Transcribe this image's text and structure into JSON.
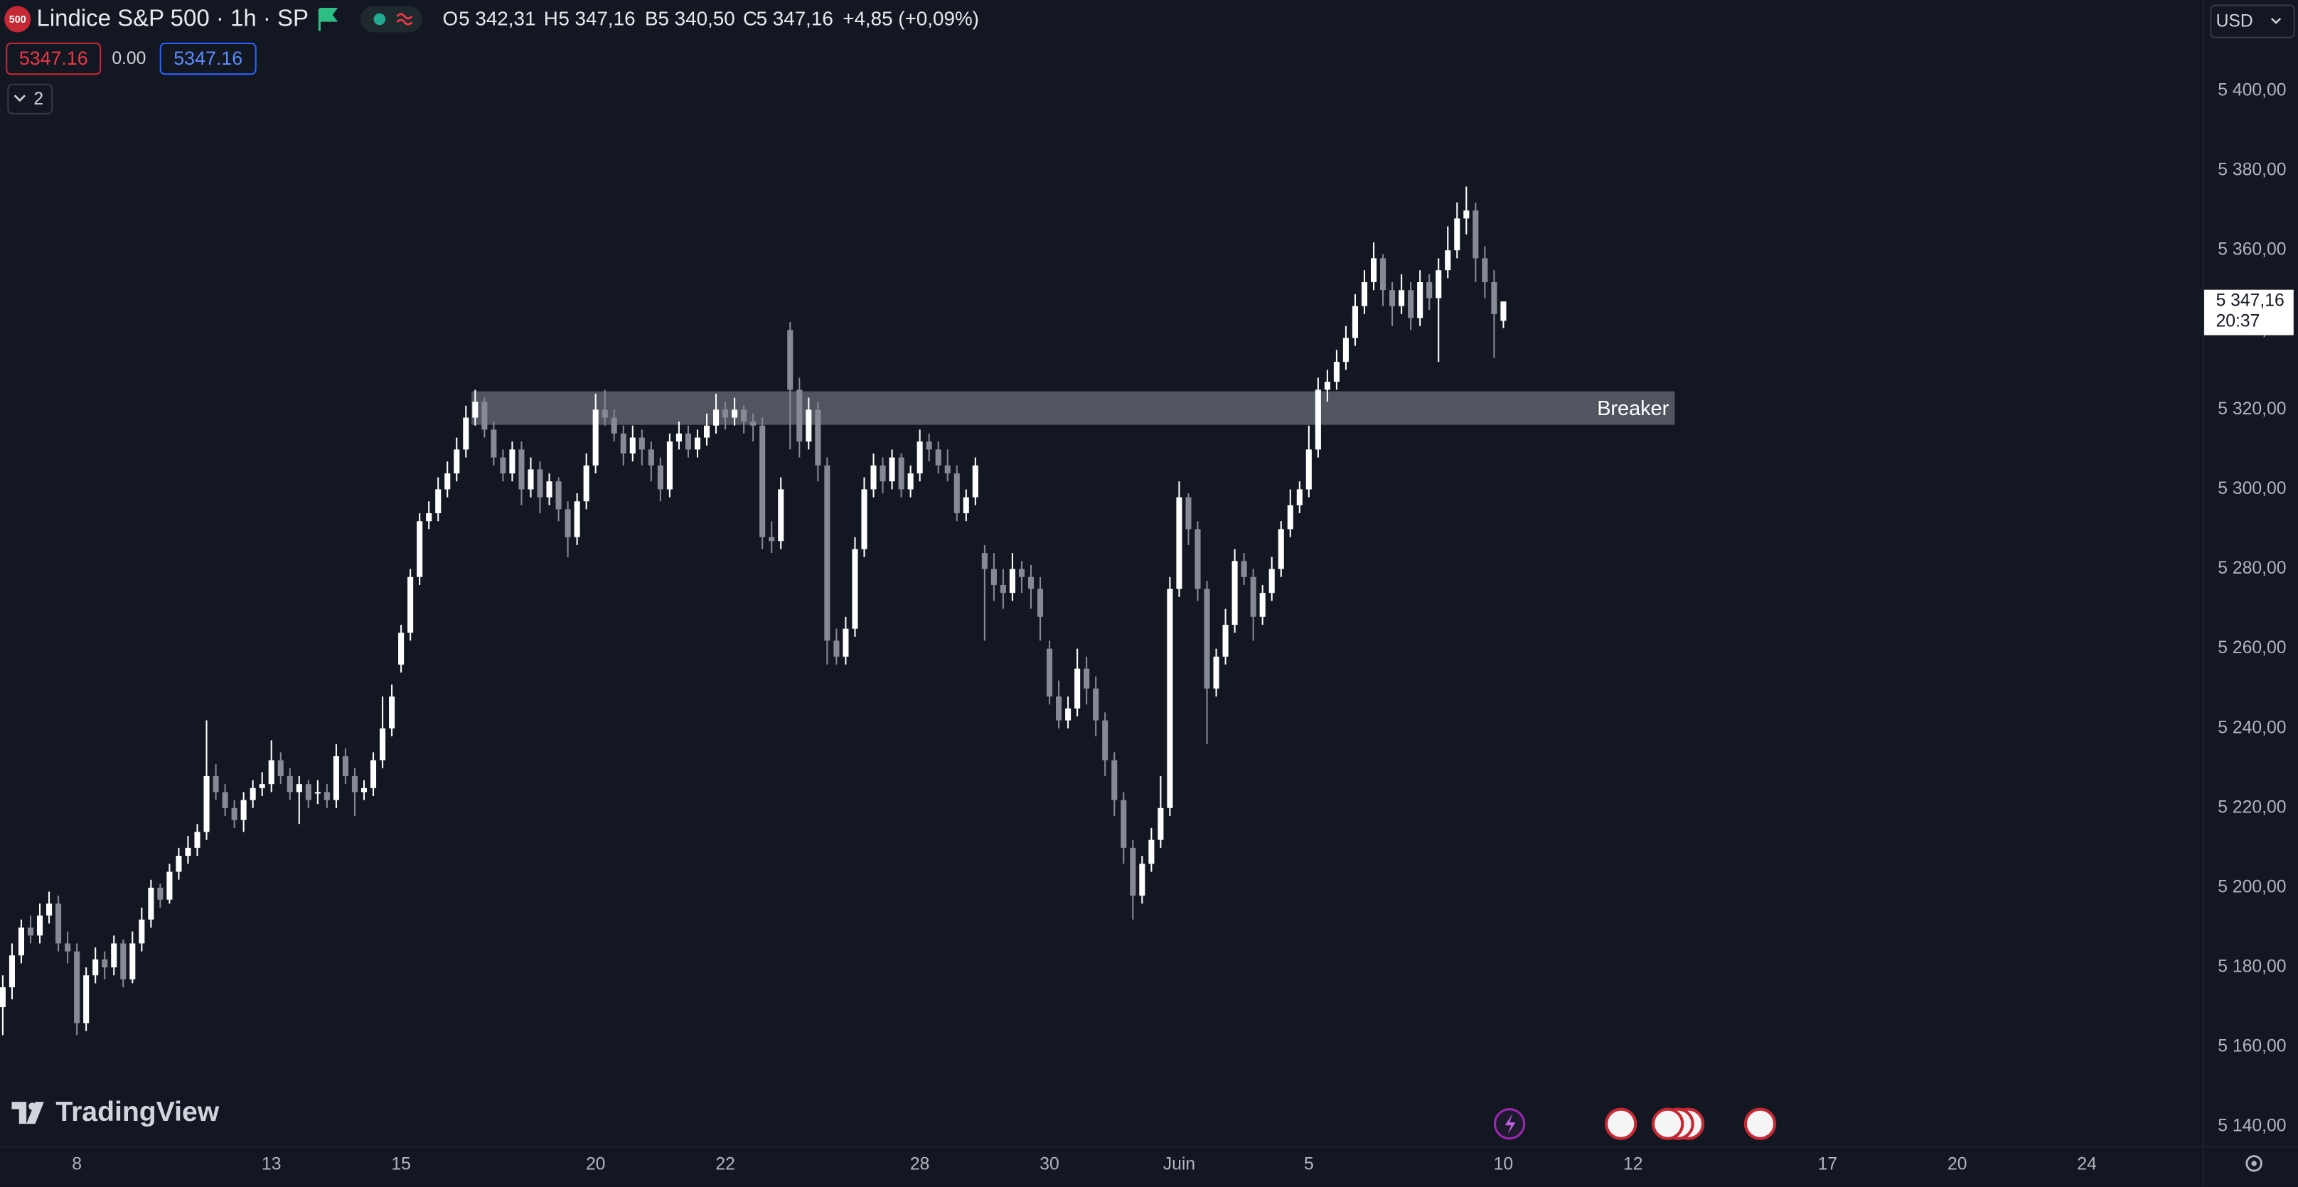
{
  "ui": {
    "symbol_icon": "500",
    "title": "Lindice S&P 500 · 1h · SP",
    "open_label": "O",
    "open": "5 342,31",
    "high_label": "H",
    "high": "5 347,16",
    "low_label": "B",
    "low": "5 340,50",
    "close_label": "C",
    "close": "5 347,16",
    "change": "+4,85 (+0,09%)",
    "sell_price": "5347.16",
    "spread": "0.00",
    "buy_price": "5347.16",
    "indicators_count": "2",
    "currency": "USD",
    "logo": "TradingView"
  },
  "chart_data": {
    "type": "candlestick",
    "up_color": "#ffffff",
    "down_color": "#878a94",
    "xlim": [
      -0.3,
      237.5
    ],
    "ylim": [
      5135.2,
      5422.8
    ],
    "grid": false,
    "xticks": [
      {
        "value": 8,
        "label": "8"
      },
      {
        "value": 29,
        "label": "13"
      },
      {
        "value": 43,
        "label": "15"
      },
      {
        "value": 64,
        "label": "20"
      },
      {
        "value": 78,
        "label": "22"
      },
      {
        "value": 99,
        "label": "28"
      },
      {
        "value": 113,
        "label": "30"
      },
      {
        "value": 127,
        "label": "Juin"
      },
      {
        "value": 141,
        "label": "5"
      },
      {
        "value": 162,
        "label": "10"
      },
      {
        "value": 176,
        "label": "12"
      },
      {
        "value": 197,
        "label": "17"
      },
      {
        "value": 211,
        "label": "20"
      },
      {
        "value": 225,
        "label": "24"
      }
    ],
    "yticks": [
      {
        "value": 5140,
        "label": "5 140,00"
      },
      {
        "value": 5160,
        "label": "5 160,00"
      },
      {
        "value": 5180,
        "label": "5 180,00"
      },
      {
        "value": 5200,
        "label": "5 200,00"
      },
      {
        "value": 5220,
        "label": "5 220,00"
      },
      {
        "value": 5240,
        "label": "5 240,00"
      },
      {
        "value": 5260,
        "label": "5 260,00"
      },
      {
        "value": 5280,
        "label": "5 280,00"
      },
      {
        "value": 5300,
        "label": "5 300,00"
      },
      {
        "value": 5320,
        "label": "5 320,00"
      },
      {
        "value": 5340,
        "label": "5 340,00"
      },
      {
        "value": 5360,
        "label": "5 360,00"
      },
      {
        "value": 5380,
        "label": "5 380,00"
      },
      {
        "value": 5400,
        "label": "5 400,00"
      }
    ],
    "zones": [
      {
        "label": "Breaker",
        "color": "#5d606b",
        "x": [
          50.6,
          180.5
        ],
        "y": [
          5316.2,
          5324.6
        ]
      }
    ],
    "last_price_label": "5 347,16",
    "countdown": "20:37",
    "ohlc": [
      [
        5170,
        5178,
        5163,
        5175
      ],
      [
        5175,
        5186,
        5172,
        5183
      ],
      [
        5183,
        5192,
        5181,
        5190
      ],
      [
        5190,
        5193,
        5186,
        5188
      ],
      [
        5188,
        5196,
        5186,
        5193
      ],
      [
        5193,
        5199,
        5191,
        5196
      ],
      [
        5196,
        5198,
        5184,
        5186
      ],
      [
        5186,
        5189,
        5181,
        5184
      ],
      [
        5184,
        5186,
        5163,
        5166
      ],
      [
        5166,
        5180,
        5164,
        5178
      ],
      [
        5178,
        5185,
        5176,
        5182
      ],
      [
        5182,
        5184,
        5177,
        5180
      ],
      [
        5180,
        5188,
        5178,
        5186
      ],
      [
        5186,
        5187,
        5175,
        5177
      ],
      [
        5177,
        5189,
        5176,
        5186
      ],
      [
        5186,
        5195,
        5184,
        5192
      ],
      [
        5192,
        5202,
        5190,
        5200
      ],
      [
        5200,
        5201,
        5195,
        5197
      ],
      [
        5197,
        5206,
        5196,
        5204
      ],
      [
        5204,
        5210,
        5202,
        5208
      ],
      [
        5208,
        5213,
        5206,
        5210
      ],
      [
        5210,
        5216,
        5208,
        5214
      ],
      [
        5214,
        5242,
        5212,
        5228
      ],
      [
        5228,
        5231,
        5222,
        5224
      ],
      [
        5224,
        5226,
        5218,
        5220
      ],
      [
        5220,
        5222,
        5215,
        5217
      ],
      [
        5217,
        5224,
        5214,
        5222
      ],
      [
        5222,
        5227,
        5220,
        5225
      ],
      [
        5225,
        5229,
        5223,
        5226
      ],
      [
        5226,
        5237,
        5224,
        5232
      ],
      [
        5232,
        5234,
        5226,
        5228
      ],
      [
        5228,
        5230,
        5222,
        5224
      ],
      [
        5224,
        5228,
        5216,
        5226
      ],
      [
        5226,
        5227,
        5220,
        5222
      ],
      [
        5224,
        5227,
        5221,
        5224
      ],
      [
        5224,
        5226,
        5220,
        5222
      ],
      [
        5222,
        5236,
        5220,
        5233
      ],
      [
        5233,
        5235,
        5226,
        5228
      ],
      [
        5228,
        5230,
        5218,
        5224
      ],
      [
        5224,
        5227,
        5222,
        5225
      ],
      [
        5225,
        5234,
        5223,
        5232
      ],
      [
        5232,
        5248,
        5230,
        5240
      ],
      [
        5240,
        5251,
        5238,
        5248
      ],
      [
        5256,
        5266,
        5254,
        5264
      ],
      [
        5264,
        5280,
        5262,
        5278
      ],
      [
        5278,
        5294,
        5276,
        5292
      ],
      [
        5292,
        5297,
        5290,
        5294
      ],
      [
        5294,
        5303,
        5292,
        5300
      ],
      [
        5300,
        5307,
        5298,
        5304
      ],
      [
        5304,
        5313,
        5302,
        5310
      ],
      [
        5310,
        5321,
        5308,
        5318
      ],
      [
        5318,
        5325,
        5316,
        5322
      ],
      [
        5322,
        5323,
        5313,
        5315
      ],
      [
        5315,
        5317,
        5306,
        5308
      ],
      [
        5308,
        5310,
        5302,
        5304
      ],
      [
        5304,
        5312,
        5302,
        5310
      ],
      [
        5310,
        5312,
        5296,
        5300
      ],
      [
        5300,
        5308,
        5298,
        5305
      ],
      [
        5305,
        5307,
        5294,
        5298
      ],
      [
        5298,
        5304,
        5296,
        5302
      ],
      [
        5302,
        5303,
        5292,
        5295
      ],
      [
        5295,
        5297,
        5283,
        5288
      ],
      [
        5288,
        5299,
        5286,
        5297
      ],
      [
        5297,
        5309,
        5295,
        5306
      ],
      [
        5306,
        5324,
        5304,
        5320
      ],
      [
        5320,
        5325,
        5316,
        5318
      ],
      [
        5318,
        5320,
        5312,
        5314
      ],
      [
        5314,
        5316,
        5306,
        5309
      ],
      [
        5309,
        5316,
        5307,
        5313
      ],
      [
        5313,
        5315,
        5306,
        5310
      ],
      [
        5310,
        5312,
        5302,
        5306
      ],
      [
        5306,
        5308,
        5297,
        5300
      ],
      [
        5300,
        5314,
        5298,
        5312
      ],
      [
        5312,
        5317,
        5310,
        5314
      ],
      [
        5314,
        5316,
        5308,
        5310
      ],
      [
        5310,
        5315,
        5308,
        5313
      ],
      [
        5313,
        5319,
        5311,
        5316
      ],
      [
        5316,
        5324,
        5314,
        5320
      ],
      [
        5320,
        5322,
        5315,
        5318
      ],
      [
        5318,
        5323,
        5316,
        5320
      ],
      [
        5320,
        5321,
        5314,
        5317
      ],
      [
        5317,
        5319,
        5312,
        5316
      ],
      [
        5316,
        5318,
        5285,
        5288
      ],
      [
        5288,
        5292,
        5284,
        5287
      ],
      [
        5287,
        5303,
        5285,
        5300
      ],
      [
        5340,
        5342,
        5310,
        5325
      ],
      [
        5325,
        5328,
        5308,
        5312
      ],
      [
        5312,
        5323,
        5310,
        5320
      ],
      [
        5320,
        5322,
        5302,
        5306
      ],
      [
        5306,
        5308,
        5256,
        5262
      ],
      [
        5262,
        5265,
        5256,
        5258
      ],
      [
        5258,
        5268,
        5256,
        5265
      ],
      [
        5265,
        5288,
        5263,
        5285
      ],
      [
        5285,
        5303,
        5283,
        5300
      ],
      [
        5300,
        5309,
        5298,
        5306
      ],
      [
        5306,
        5308,
        5299,
        5302
      ],
      [
        5302,
        5310,
        5300,
        5308
      ],
      [
        5308,
        5309,
        5298,
        5300
      ],
      [
        5300,
        5306,
        5298,
        5304
      ],
      [
        5304,
        5315,
        5302,
        5312
      ],
      [
        5312,
        5314,
        5307,
        5310
      ],
      [
        5310,
        5312,
        5304,
        5306
      ],
      [
        5306,
        5310,
        5302,
        5304
      ],
      [
        5304,
        5306,
        5292,
        5294
      ],
      [
        5294,
        5300,
        5292,
        5298
      ],
      [
        5298,
        5308,
        5296,
        5306
      ],
      [
        5284,
        5286,
        5262,
        5280
      ],
      [
        5280,
        5284,
        5272,
        5276
      ],
      [
        5276,
        5280,
        5270,
        5274
      ],
      [
        5274,
        5284,
        5272,
        5280
      ],
      [
        5280,
        5282,
        5274,
        5278
      ],
      [
        5278,
        5281,
        5270,
        5275
      ],
      [
        5275,
        5278,
        5262,
        5268
      ],
      [
        5260,
        5262,
        5246,
        5248
      ],
      [
        5248,
        5252,
        5240,
        5242
      ],
      [
        5242,
        5248,
        5240,
        5245
      ],
      [
        5245,
        5260,
        5243,
        5255
      ],
      [
        5255,
        5258,
        5246,
        5250
      ],
      [
        5250,
        5253,
        5238,
        5242
      ],
      [
        5242,
        5244,
        5228,
        5232
      ],
      [
        5232,
        5234,
        5218,
        5222
      ],
      [
        5222,
        5224,
        5206,
        5210
      ],
      [
        5210,
        5212,
        5192,
        5198
      ],
      [
        5198,
        5208,
        5196,
        5206
      ],
      [
        5206,
        5215,
        5204,
        5212
      ],
      [
        5212,
        5228,
        5210,
        5220
      ],
      [
        5220,
        5278,
        5218,
        5275
      ],
      [
        5275,
        5302,
        5273,
        5298
      ],
      [
        5298,
        5299,
        5286,
        5290
      ],
      [
        5290,
        5292,
        5272,
        5275
      ],
      [
        5275,
        5277,
        5236,
        5250
      ],
      [
        5250,
        5260,
        5248,
        5258
      ],
      [
        5258,
        5270,
        5256,
        5266
      ],
      [
        5266,
        5285,
        5264,
        5282
      ],
      [
        5282,
        5284,
        5276,
        5278
      ],
      [
        5278,
        5280,
        5262,
        5268
      ],
      [
        5268,
        5276,
        5266,
        5274
      ],
      [
        5274,
        5283,
        5272,
        5280
      ],
      [
        5280,
        5292,
        5278,
        5290
      ],
      [
        5290,
        5300,
        5288,
        5296
      ],
      [
        5296,
        5302,
        5294,
        5300
      ],
      [
        5300,
        5316,
        5298,
        5310
      ],
      [
        5310,
        5328,
        5308,
        5325
      ],
      [
        5325,
        5330,
        5322,
        5327
      ],
      [
        5327,
        5335,
        5325,
        5332
      ],
      [
        5332,
        5341,
        5330,
        5338
      ],
      [
        5338,
        5349,
        5336,
        5346
      ],
      [
        5346,
        5355,
        5344,
        5352
      ],
      [
        5352,
        5362,
        5350,
        5358
      ],
      [
        5358,
        5359,
        5346,
        5350
      ],
      [
        5350,
        5352,
        5341,
        5346
      ],
      [
        5346,
        5354,
        5344,
        5350
      ],
      [
        5350,
        5352,
        5340,
        5343
      ],
      [
        5343,
        5355,
        5341,
        5352
      ],
      [
        5352,
        5354,
        5345,
        5348
      ],
      [
        5348,
        5358,
        5332,
        5355
      ],
      [
        5355,
        5366,
        5353,
        5360
      ],
      [
        5360,
        5372,
        5358,
        5368
      ],
      [
        5368,
        5376,
        5364,
        5370
      ],
      [
        5370,
        5372,
        5352,
        5358
      ],
      [
        5358,
        5361,
        5348,
        5352
      ],
      [
        5352,
        5355,
        5333,
        5344
      ],
      [
        5342.31,
        5347.16,
        5340.5,
        5347.16
      ]
    ]
  }
}
